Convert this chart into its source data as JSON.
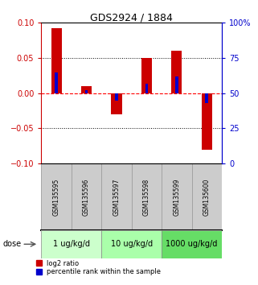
{
  "title": "GDS2924 / 1884",
  "samples": [
    "GSM135595",
    "GSM135596",
    "GSM135597",
    "GSM135598",
    "GSM135599",
    "GSM135600"
  ],
  "log2_ratio": [
    0.092,
    0.01,
    -0.03,
    0.05,
    0.06,
    -0.08
  ],
  "percentile_rank": [
    65,
    52,
    45,
    57,
    62,
    43
  ],
  "dose_groups": [
    {
      "label": "1 ug/kg/d",
      "start": 0,
      "end": 1,
      "color": "#ccffcc"
    },
    {
      "label": "10 ug/kg/d",
      "start": 2,
      "end": 3,
      "color": "#aaffaa"
    },
    {
      "label": "1000 ug/kg/d",
      "start": 4,
      "end": 5,
      "color": "#66dd66"
    }
  ],
  "red_color": "#cc0000",
  "blue_color": "#0000cc",
  "ylim_left": [
    -0.1,
    0.1
  ],
  "ylim_right": [
    0,
    100
  ],
  "yticks_left": [
    -0.1,
    -0.05,
    0,
    0.05,
    0.1
  ],
  "yticks_right": [
    0,
    25,
    50,
    75,
    100
  ],
  "bar_width": 0.35,
  "blue_bar_width": 0.1,
  "background_color": "#ffffff",
  "sample_bg": "#cccccc",
  "dose_label": "dose"
}
